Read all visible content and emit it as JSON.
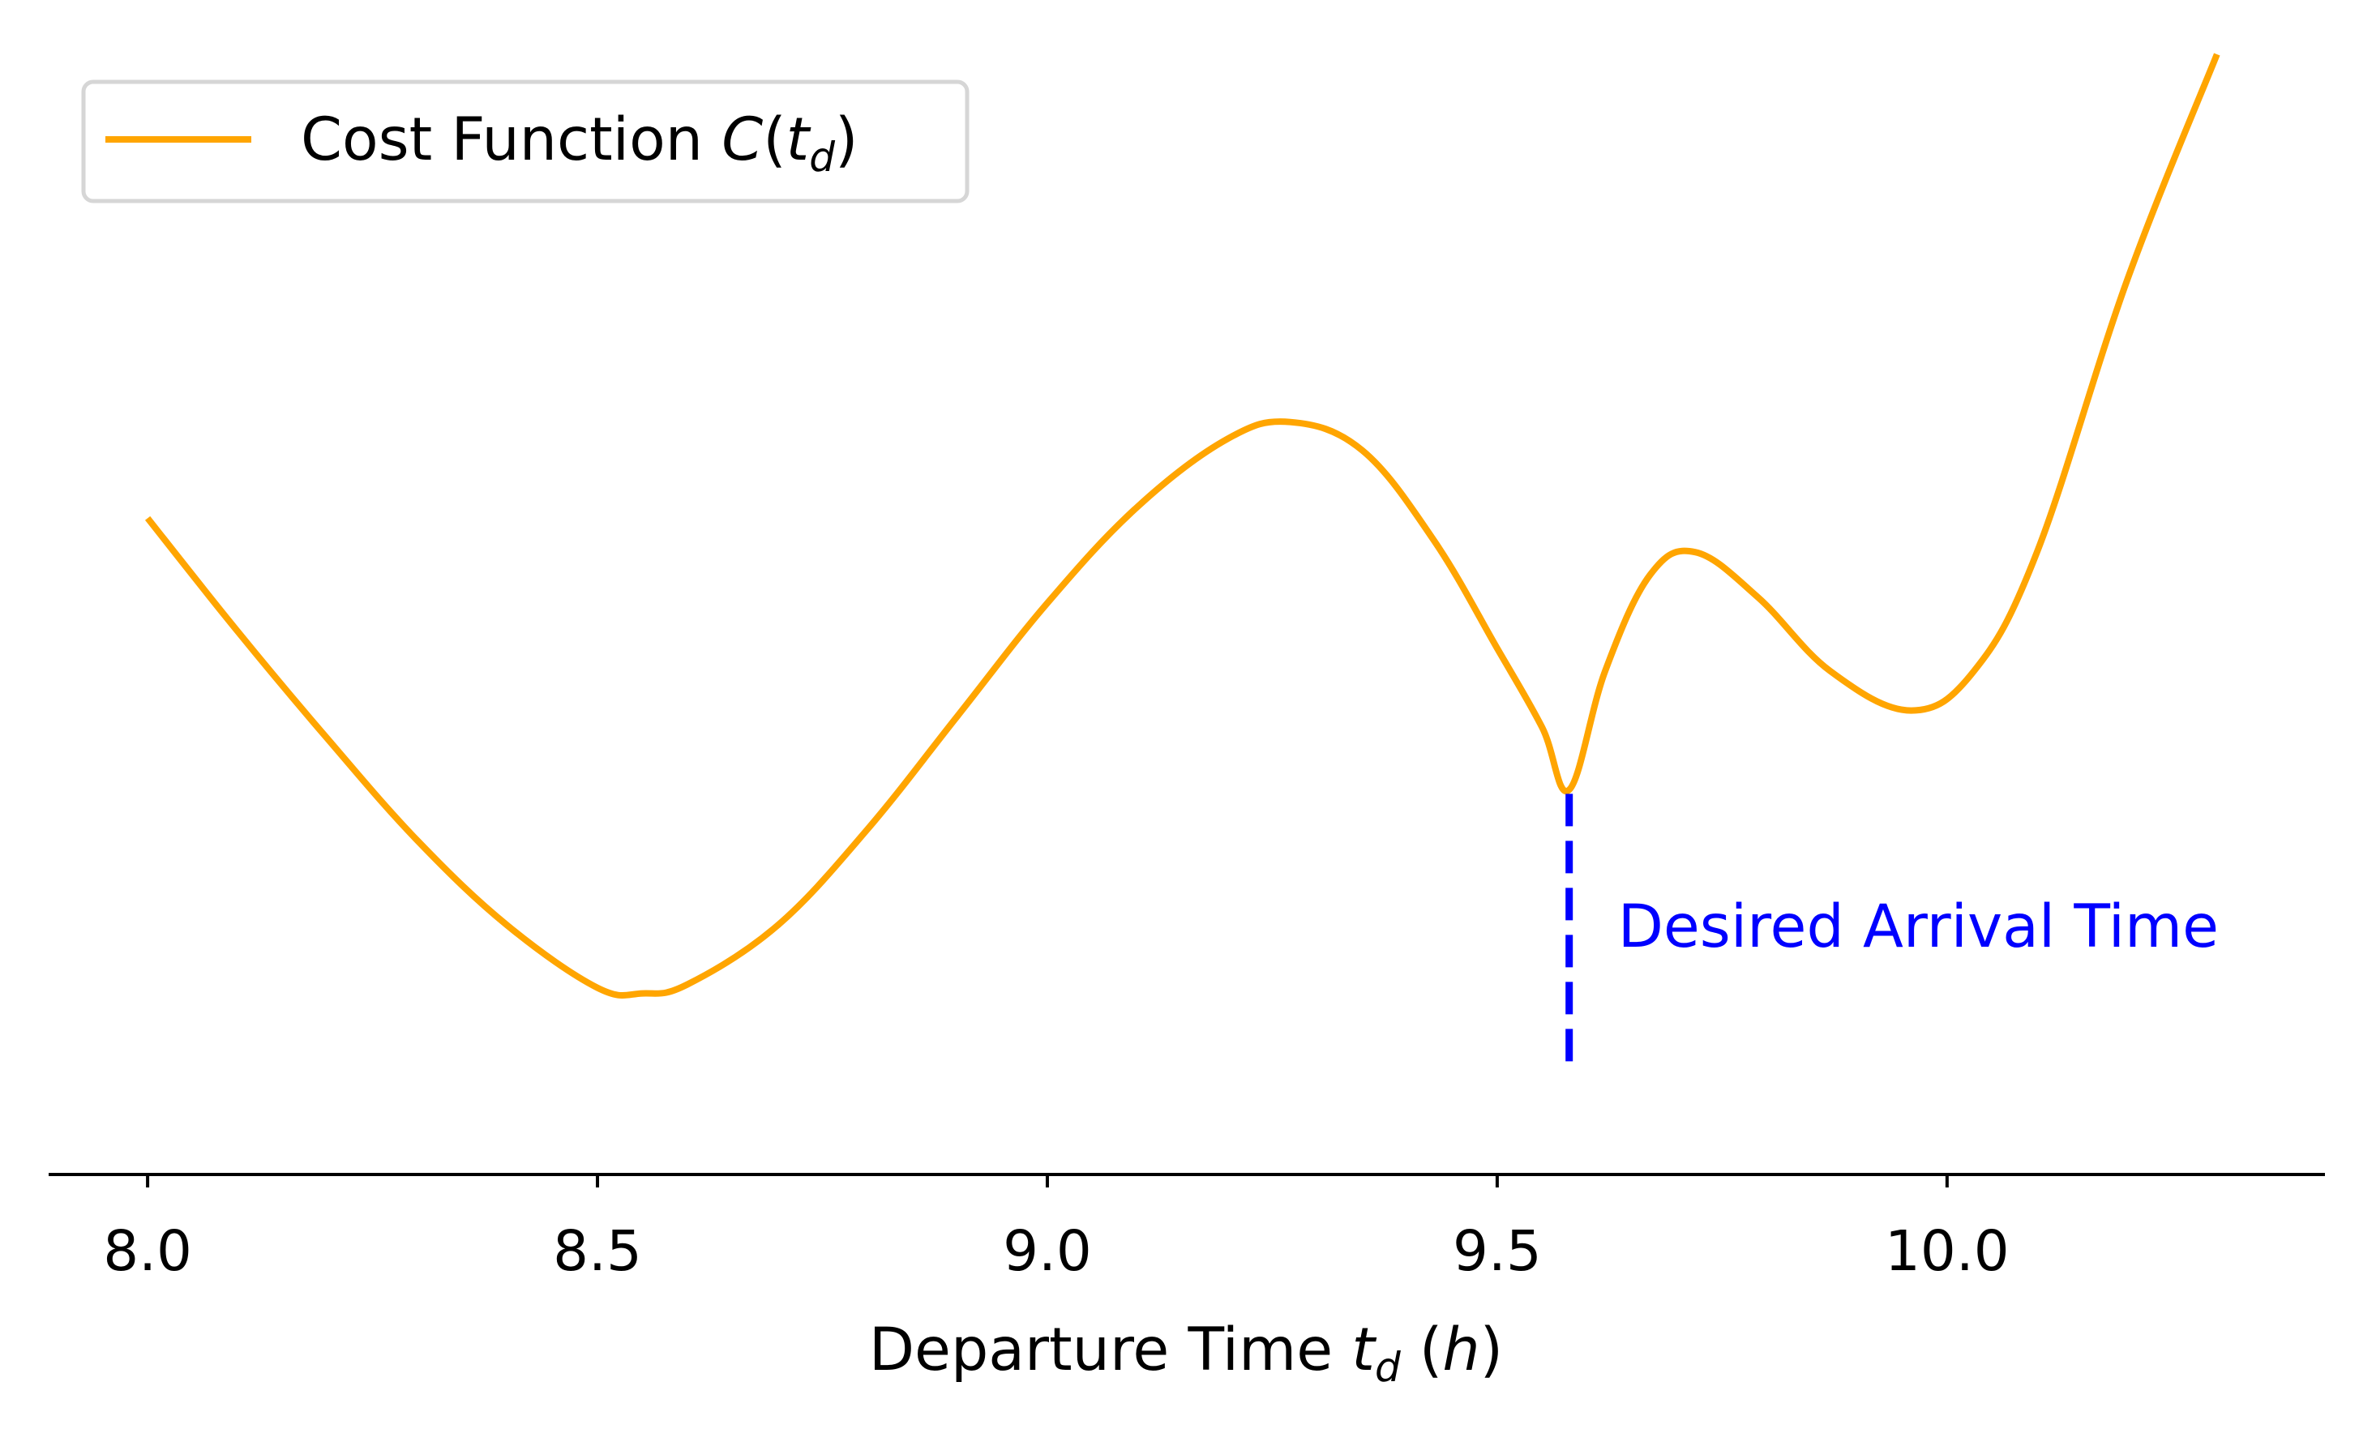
{
  "chart_data": {
    "type": "line",
    "title": "",
    "xlabel": {
      "prefix": "Departure Time ",
      "var": "t",
      "sub": "d",
      "mid": " (",
      "unit": "h",
      "suffix": ")"
    },
    "ylabel": "",
    "xlim": [
      7.89,
      10.42
    ],
    "ylim": [
      -0.9,
      9.05
    ],
    "x_ticks": [
      {
        "value": 8.0,
        "label": "8.0"
      },
      {
        "value": 8.5,
        "label": "8.5"
      },
      {
        "value": 9.0,
        "label": "9.0"
      },
      {
        "value": 9.5,
        "label": "9.5"
      },
      {
        "value": 10.0,
        "label": "10.0"
      }
    ],
    "y_axis_visible": false,
    "grid": false,
    "legend": {
      "placement": "top-left",
      "entries": [
        {
          "prefix": "Cost Function ",
          "var": "C",
          "open": "(",
          "sub_var": "t",
          "sub": "d",
          "close": ")"
        }
      ]
    },
    "series": [
      {
        "name": "Cost Function C(t_d)",
        "color": "#ffa500",
        "x": [
          8.0,
          8.1,
          8.2,
          8.3,
          8.4,
          8.5,
          8.55,
          8.6,
          8.7,
          8.8,
          8.9,
          9.0,
          9.1,
          9.2,
          9.27,
          9.35,
          9.43,
          9.5,
          9.55,
          9.58,
          9.62,
          9.67,
          9.72,
          9.79,
          9.87,
          9.96,
          10.03,
          10.1,
          10.2,
          10.3
        ],
        "y": [
          4.9,
          3.9,
          2.95,
          2.05,
          1.3,
          0.75,
          0.7,
          0.78,
          1.3,
          2.15,
          3.15,
          4.15,
          5.0,
          5.6,
          5.75,
          5.5,
          4.7,
          3.75,
          3.05,
          2.5,
          3.55,
          4.4,
          4.6,
          4.2,
          3.55,
          3.2,
          3.55,
          4.6,
          7.0,
          9.0
        ]
      }
    ],
    "annotations": [
      {
        "type": "vline",
        "x": 9.58,
        "y_from": 0.1,
        "y_to": 2.5,
        "style": "dashed",
        "color": "#0000ff",
        "label": "Desired Arrival Time",
        "label_color": "#0000ff"
      }
    ]
  }
}
